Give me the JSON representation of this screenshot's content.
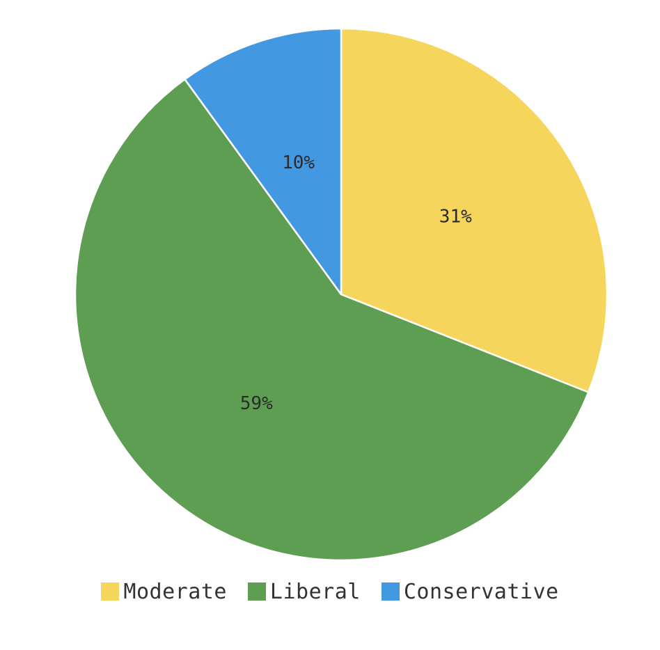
{
  "chart_data": {
    "type": "pie",
    "slices": [
      {
        "name": "Moderate",
        "value": 31,
        "label": "31%",
        "color": "#F6D55C"
      },
      {
        "name": "Liberal",
        "value": 59,
        "label": "59%",
        "color": "#5E9E52"
      },
      {
        "name": "Conservative",
        "value": 10,
        "label": "10%",
        "color": "#4299E1"
      }
    ],
    "start_angle_deg": 0,
    "direction": "clockwise",
    "legend_position": "bottom"
  }
}
